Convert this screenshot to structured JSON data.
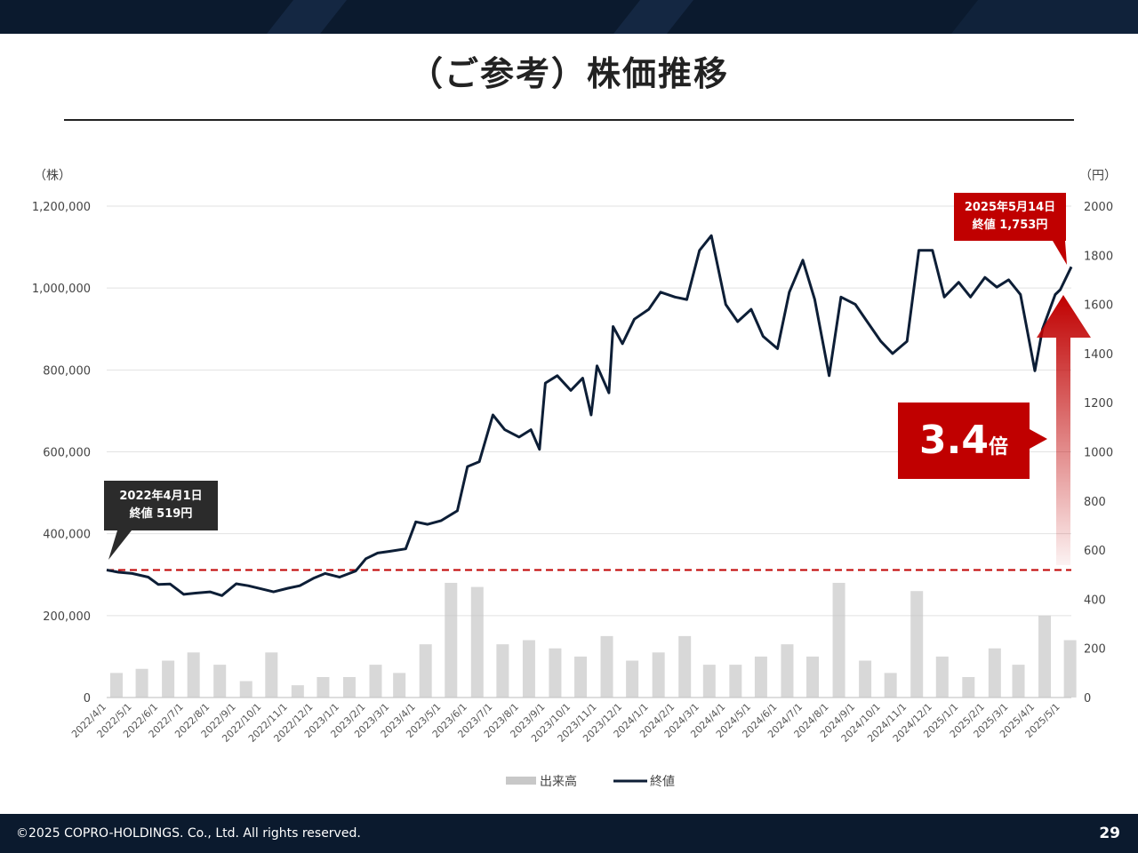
{
  "title": "（ご参考）株価推移",
  "footer": {
    "copyright": "©2025 COPRO-HOLDINGS. Co., Ltd. All rights reserved.",
    "page": "29"
  },
  "axes": {
    "left_unit": "（株）",
    "right_unit": "（円）"
  },
  "annotations": {
    "start_line1": "2022年4月1日",
    "start_line2": "終値 519円",
    "end_line1": "2025年5月14日",
    "end_line2": "終値 1,753円",
    "multiple_value": "3.4",
    "multiple_unit": "倍"
  },
  "colors": {
    "close": "#0d1e36",
    "volume": "#c8c8c8",
    "accent": "#c00000",
    "callout": "#2b2b2b",
    "bar": "#0b1a2e"
  },
  "chart_data": {
    "type": "bar+line",
    "x_ticks": [
      "2022/4/1",
      "2022/5/1",
      "2022/6/1",
      "2022/7/1",
      "2022/8/1",
      "2022/9/1",
      "2022/10/1",
      "2022/11/1",
      "2022/12/1",
      "2023/1/1",
      "2023/2/1",
      "2023/3/1",
      "2023/4/1",
      "2023/5/1",
      "2023/6/1",
      "2023/7/1",
      "2023/8/1",
      "2023/9/1",
      "2023/10/1",
      "2023/11/1",
      "2023/12/1",
      "2024/1/1",
      "2024/2/1",
      "2024/3/1",
      "2024/4/1",
      "2024/5/1",
      "2024/6/1",
      "2024/7/1",
      "2024/8/1",
      "2024/9/1",
      "2024/10/1",
      "2024/11/1",
      "2024/12/1",
      "2025/1/1",
      "2025/2/1",
      "2025/3/1",
      "2025/4/1",
      "2025/5/1"
    ],
    "y_left": {
      "min": 0,
      "max": 1200000,
      "ticks": [
        "0",
        "200,000",
        "400,000",
        "600,000",
        "800,000",
        "1,000,000",
        "1,200,000"
      ]
    },
    "y_right": {
      "min": 0,
      "max": 2000,
      "ticks": [
        "0",
        "200",
        "400",
        "600",
        "800",
        "1000",
        "1200",
        "1400",
        "1600",
        "1800",
        "2000"
      ]
    },
    "legend": [
      {
        "name": "出来高",
        "style": "bar"
      },
      {
        "name": "終値",
        "style": "line"
      }
    ],
    "legend_position": "bottom",
    "reference_line": {
      "value": 519,
      "axis": "right",
      "style": "dashed"
    },
    "series": [
      {
        "name": "終値",
        "axis": "right",
        "points": [
          [
            "2022/4/1",
            519
          ],
          [
            "2022/4/15",
            510
          ],
          [
            "2022/5/1",
            505
          ],
          [
            "2022/5/20",
            490
          ],
          [
            "2022/6/1",
            460
          ],
          [
            "2022/6/15",
            462
          ],
          [
            "2022/7/1",
            420
          ],
          [
            "2022/7/15",
            425
          ],
          [
            "2022/8/1",
            430
          ],
          [
            "2022/8/15",
            415
          ],
          [
            "2022/9/1",
            463
          ],
          [
            "2022/9/15",
            455
          ],
          [
            "2022/10/1",
            442
          ],
          [
            "2022/10/15",
            430
          ],
          [
            "2022/11/1",
            445
          ],
          [
            "2022/11/15",
            455
          ],
          [
            "2022/12/1",
            485
          ],
          [
            "2022/12/15",
            505
          ],
          [
            "2023/1/1",
            490
          ],
          [
            "2023/1/20",
            515
          ],
          [
            "2023/2/1",
            565
          ],
          [
            "2023/2/15",
            588
          ],
          [
            "2023/3/1",
            595
          ],
          [
            "2023/3/20",
            605
          ],
          [
            "2023/4/1",
            715
          ],
          [
            "2023/4/15",
            705
          ],
          [
            "2023/5/1",
            720
          ],
          [
            "2023/5/20",
            760
          ],
          [
            "2023/6/1",
            940
          ],
          [
            "2023/6/15",
            960
          ],
          [
            "2023/7/1",
            1150
          ],
          [
            "2023/7/15",
            1090
          ],
          [
            "2023/8/1",
            1060
          ],
          [
            "2023/8/15",
            1090
          ],
          [
            "2023/8/25",
            1010
          ],
          [
            "2023/9/1",
            1280
          ],
          [
            "2023/9/15",
            1310
          ],
          [
            "2023/10/1",
            1250
          ],
          [
            "2023/10/15",
            1300
          ],
          [
            "2023/10/25",
            1150
          ],
          [
            "2023/11/1",
            1350
          ],
          [
            "2023/11/15",
            1240
          ],
          [
            "2023/11/20",
            1510
          ],
          [
            "2023/12/1",
            1440
          ],
          [
            "2023/12/15",
            1540
          ],
          [
            "2024/1/1",
            1580
          ],
          [
            "2024/1/15",
            1650
          ],
          [
            "2024/2/1",
            1630
          ],
          [
            "2024/2/15",
            1620
          ],
          [
            "2024/3/1",
            1820
          ],
          [
            "2024/3/15",
            1880
          ],
          [
            "2024/4/1",
            1600
          ],
          [
            "2024/4/15",
            1530
          ],
          [
            "2024/5/1",
            1580
          ],
          [
            "2024/5/15",
            1470
          ],
          [
            "2024/6/1",
            1420
          ],
          [
            "2024/6/15",
            1650
          ],
          [
            "2024/7/1",
            1780
          ],
          [
            "2024/7/15",
            1620
          ],
          [
            "2024/8/1",
            1310
          ],
          [
            "2024/8/15",
            1630
          ],
          [
            "2024/9/1",
            1600
          ],
          [
            "2024/9/15",
            1530
          ],
          [
            "2024/10/1",
            1450
          ],
          [
            "2024/10/15",
            1400
          ],
          [
            "2024/11/1",
            1450
          ],
          [
            "2024/11/15",
            1820
          ],
          [
            "2024/12/1",
            1820
          ],
          [
            "2024/12/15",
            1630
          ],
          [
            "2025/1/1",
            1690
          ],
          [
            "2025/1/15",
            1630
          ],
          [
            "2025/2/1",
            1710
          ],
          [
            "2025/2/15",
            1670
          ],
          [
            "2025/3/1",
            1700
          ],
          [
            "2025/3/15",
            1640
          ],
          [
            "2025/4/1",
            1330
          ],
          [
            "2025/4/10",
            1500
          ],
          [
            "2025/4/25",
            1640
          ],
          [
            "2025/5/1",
            1660
          ],
          [
            "2025/5/14",
            1753
          ]
        ]
      },
      {
        "name": "出来高",
        "axis": "left",
        "points": [
          [
            "2022/4/1",
            60000
          ],
          [
            "2022/5/1",
            70000
          ],
          [
            "2022/6/1",
            90000
          ],
          [
            "2022/7/1",
            110000
          ],
          [
            "2022/8/1",
            80000
          ],
          [
            "2022/9/1",
            40000
          ],
          [
            "2022/10/1",
            110000
          ],
          [
            "2022/11/1",
            30000
          ],
          [
            "2022/12/1",
            50000
          ],
          [
            "2023/1/1",
            50000
          ],
          [
            "2023/2/1",
            80000
          ],
          [
            "2023/3/1",
            60000
          ],
          [
            "2023/4/1",
            130000
          ],
          [
            "2023/5/1",
            280000
          ],
          [
            "2023/6/1",
            270000
          ],
          [
            "2023/7/1",
            130000
          ],
          [
            "2023/8/1",
            140000
          ],
          [
            "2023/9/1",
            120000
          ],
          [
            "2023/10/1",
            100000
          ],
          [
            "2023/11/1",
            150000
          ],
          [
            "2023/12/1",
            90000
          ],
          [
            "2024/1/1",
            110000
          ],
          [
            "2024/2/1",
            150000
          ],
          [
            "2024/3/1",
            80000
          ],
          [
            "2024/4/1",
            80000
          ],
          [
            "2024/5/1",
            100000
          ],
          [
            "2024/6/1",
            130000
          ],
          [
            "2024/7/1",
            100000
          ],
          [
            "2024/8/1",
            280000
          ],
          [
            "2024/9/1",
            90000
          ],
          [
            "2024/10/1",
            60000
          ],
          [
            "2024/11/1",
            260000
          ],
          [
            "2024/12/1",
            100000
          ],
          [
            "2025/1/1",
            50000
          ],
          [
            "2025/2/1",
            120000
          ],
          [
            "2025/3/1",
            80000
          ],
          [
            "2025/4/1",
            200000
          ],
          [
            "2025/5/1",
            140000
          ]
        ]
      }
    ]
  }
}
